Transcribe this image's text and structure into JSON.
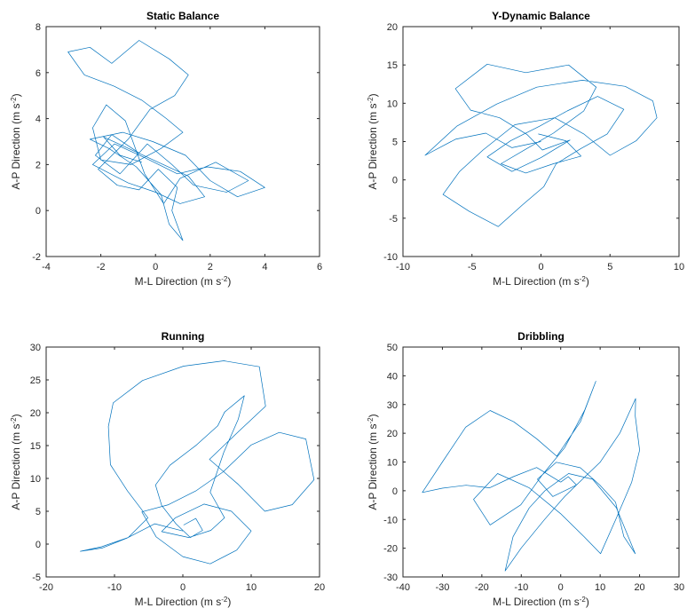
{
  "chart_data": [
    {
      "type": "line",
      "title": "Static Balance",
      "xlabel": "M-L Direction",
      "ylabel": "A-P Direction",
      "unit_prefix": "(m s",
      "unit_exp": "-2",
      "unit_suffix": ")",
      "xlim": [
        -4,
        6
      ],
      "ylim": [
        -2,
        8
      ],
      "xticks": [
        -4,
        -2,
        0,
        2,
        4,
        6
      ],
      "yticks": [
        -2,
        0,
        2,
        4,
        6,
        8
      ],
      "color": "#0072BD",
      "series": [
        {
          "points": [
            [
              -0.6,
              2.5
            ],
            [
              -1.6,
              3.3
            ],
            [
              -2.2,
              2.4
            ],
            [
              -1.3,
              1.6
            ],
            [
              -0.3,
              2.9
            ],
            [
              0.6,
              2.0
            ],
            [
              1.4,
              1.1
            ],
            [
              2.6,
              0.8
            ],
            [
              3.4,
              1.3
            ],
            [
              2.2,
              2.1
            ],
            [
              0.9,
              1.4
            ],
            [
              0.3,
              0.3
            ],
            [
              -0.4,
              1.6
            ],
            [
              -1.1,
              3.9
            ],
            [
              -1.8,
              4.6
            ],
            [
              -2.3,
              3.6
            ],
            [
              -2.0,
              2.2
            ],
            [
              -0.9,
              2.0
            ],
            [
              0.2,
              2.7
            ],
            [
              1.0,
              3.4
            ],
            [
              0.4,
              4.0
            ],
            [
              -0.5,
              4.8
            ],
            [
              -1.5,
              5.4
            ],
            [
              -2.6,
              5.9
            ],
            [
              -3.2,
              6.9
            ],
            [
              -2.4,
              7.1
            ],
            [
              -1.6,
              6.4
            ],
            [
              -0.6,
              7.4
            ],
            [
              0.5,
              6.6
            ],
            [
              1.2,
              5.9
            ],
            [
              0.7,
              5.0
            ],
            [
              -0.2,
              4.4
            ],
            [
              -1.0,
              3.1
            ],
            [
              -2.1,
              1.8
            ],
            [
              -1.4,
              1.1
            ],
            [
              -0.6,
              0.9
            ],
            [
              0.1,
              1.8
            ],
            [
              0.8,
              1.0
            ],
            [
              0.6,
              0.0
            ],
            [
              1.0,
              -1.3
            ],
            [
              0.5,
              -0.6
            ],
            [
              0.2,
              0.7
            ],
            [
              -0.7,
              1.9
            ],
            [
              -1.7,
              2.7
            ],
            [
              -2.4,
              3.1
            ],
            [
              -1.2,
              3.4
            ],
            [
              -0.1,
              3.0
            ],
            [
              1.1,
              2.4
            ],
            [
              2.0,
              1.3
            ],
            [
              3.0,
              0.6
            ],
            [
              4.0,
              1.0
            ],
            [
              3.1,
              1.7
            ],
            [
              1.9,
              1.9
            ],
            [
              0.8,
              1.6
            ],
            [
              -0.4,
              2.3
            ],
            [
              -1.5,
              2.9
            ],
            [
              -2.3,
              2.0
            ],
            [
              -1.0,
              1.2
            ],
            [
              0.0,
              0.8
            ],
            [
              0.9,
              0.3
            ],
            [
              1.8,
              0.6
            ],
            [
              1.2,
              1.5
            ],
            [
              0.1,
              2.1
            ],
            [
              -0.8,
              2.6
            ],
            [
              -1.9,
              3.2
            ],
            [
              -1.3,
              2.4
            ],
            [
              -0.5,
              2.1
            ]
          ]
        }
      ]
    },
    {
      "type": "line",
      "title": "Y-Dynamic Balance",
      "xlabel": "M-L Direction",
      "ylabel": "A-P Direction",
      "unit_prefix": "(m s",
      "unit_exp": "-2",
      "unit_suffix": ")",
      "xlim": [
        -10,
        10
      ],
      "ylim": [
        -10,
        20
      ],
      "xticks": [
        -10,
        -5,
        0,
        5,
        10
      ],
      "yticks": [
        -10,
        -5,
        0,
        5,
        10,
        15,
        20
      ],
      "color": "#0072BD",
      "series": [
        {
          "points": [
            [
              0.0,
              5.0
            ],
            [
              -2.1,
              4.2
            ],
            [
              -4.0,
              6.1
            ],
            [
              -6.2,
              5.3
            ],
            [
              -8.4,
              3.2
            ],
            [
              -6.1,
              7.0
            ],
            [
              -3.2,
              9.9
            ],
            [
              -0.3,
              12.1
            ],
            [
              3.0,
              13.0
            ],
            [
              6.1,
              12.2
            ],
            [
              8.1,
              10.3
            ],
            [
              8.4,
              8.1
            ],
            [
              6.9,
              5.1
            ],
            [
              5.0,
              3.2
            ],
            [
              3.1,
              6.0
            ],
            [
              1.0,
              8.1
            ],
            [
              -1.9,
              7.2
            ],
            [
              -4.2,
              3.9
            ],
            [
              -5.9,
              1.1
            ],
            [
              -7.1,
              -1.9
            ],
            [
              -5.2,
              -4.1
            ],
            [
              -3.1,
              -6.1
            ],
            [
              -1.3,
              -3.2
            ],
            [
              0.2,
              -0.9
            ],
            [
              1.1,
              2.1
            ],
            [
              2.9,
              4.1
            ],
            [
              4.8,
              6.0
            ],
            [
              6.0,
              9.2
            ],
            [
              4.1,
              10.9
            ],
            [
              1.9,
              9.0
            ],
            [
              -0.1,
              7.0
            ],
            [
              -2.2,
              5.1
            ],
            [
              -3.9,
              3.0
            ],
            [
              -2.1,
              1.1
            ],
            [
              0.0,
              2.9
            ],
            [
              2.1,
              5.2
            ],
            [
              0.1,
              3.9
            ],
            [
              -1.0,
              5.9
            ],
            [
              -3.0,
              8.1
            ],
            [
              -5.1,
              9.1
            ],
            [
              -6.2,
              11.9
            ],
            [
              -3.9,
              15.1
            ],
            [
              -1.1,
              14.0
            ],
            [
              2.0,
              15.0
            ],
            [
              4.0,
              12.1
            ],
            [
              3.1,
              9.0
            ],
            [
              0.9,
              6.1
            ],
            [
              -1.1,
              4.0
            ],
            [
              -2.9,
              2.1
            ],
            [
              -1.1,
              0.9
            ],
            [
              0.9,
              2.1
            ],
            [
              2.9,
              3.1
            ],
            [
              1.8,
              5.1
            ],
            [
              -0.2,
              6.0
            ]
          ]
        }
      ]
    },
    {
      "type": "line",
      "title": "Running",
      "xlabel": "M-L Direction",
      "ylabel": "A-P Direction",
      "unit_prefix": "(m s",
      "unit_exp": "-2",
      "unit_suffix": ")",
      "xlim": [
        -20,
        20
      ],
      "ylim": [
        -5,
        30
      ],
      "xticks": [
        -20,
        -10,
        0,
        10,
        20
      ],
      "yticks": [
        -5,
        0,
        5,
        10,
        15,
        20,
        25,
        30
      ],
      "color": "#0072BD",
      "series": [
        {
          "points": [
            [
              0.0,
              2.0
            ],
            [
              -4.1,
              3.1
            ],
            [
              -8.2,
              0.9
            ],
            [
              -11.8,
              -0.6
            ],
            [
              -15.0,
              -1.1
            ],
            [
              -11.9,
              -0.4
            ],
            [
              -8.0,
              1.0
            ],
            [
              -5.1,
              4.0
            ],
            [
              -8.1,
              8.1
            ],
            [
              -10.6,
              12.1
            ],
            [
              -10.9,
              17.9
            ],
            [
              -10.2,
              21.5
            ],
            [
              -5.9,
              24.9
            ],
            [
              0.1,
              27.1
            ],
            [
              6.0,
              27.9
            ],
            [
              11.2,
              27.0
            ],
            [
              12.1,
              21.0
            ],
            [
              8.1,
              17.1
            ],
            [
              3.9,
              12.9
            ],
            [
              8.1,
              9.1
            ],
            [
              12.0,
              5.0
            ],
            [
              16.0,
              6.0
            ],
            [
              19.2,
              9.8
            ],
            [
              18.0,
              16.0
            ],
            [
              14.1,
              17.0
            ],
            [
              10.0,
              15.1
            ],
            [
              5.9,
              11.0
            ],
            [
              1.9,
              8.1
            ],
            [
              -2.1,
              6.0
            ],
            [
              -6.0,
              4.9
            ],
            [
              -3.9,
              1.1
            ],
            [
              0.0,
              -1.9
            ],
            [
              4.0,
              -3.0
            ],
            [
              7.9,
              -0.9
            ],
            [
              10.0,
              2.0
            ],
            [
              7.1,
              5.0
            ],
            [
              3.1,
              6.1
            ],
            [
              -1.1,
              4.0
            ],
            [
              -3.1,
              1.9
            ],
            [
              0.9,
              1.0
            ],
            [
              4.1,
              2.1
            ],
            [
              6.1,
              4.0
            ],
            [
              4.0,
              7.9
            ],
            [
              6.0,
              14.0
            ],
            [
              8.1,
              19.0
            ],
            [
              9.0,
              22.6
            ],
            [
              6.1,
              20.1
            ],
            [
              5.1,
              18.0
            ],
            [
              2.0,
              15.1
            ],
            [
              -1.9,
              12.0
            ],
            [
              -4.0,
              9.0
            ],
            [
              -3.1,
              5.9
            ],
            [
              -1.0,
              3.1
            ],
            [
              1.1,
              1.0
            ],
            [
              2.9,
              2.1
            ],
            [
              1.9,
              3.9
            ],
            [
              0.1,
              2.9
            ]
          ]
        }
      ]
    },
    {
      "type": "line",
      "title": "Dribbling",
      "xlabel": "M-L Direction",
      "ylabel": "A-P Direction",
      "unit_prefix": "(m s",
      "unit_exp": "-2",
      "unit_suffix": ")",
      "xlim": [
        -40,
        30
      ],
      "ylim": [
        -30,
        50
      ],
      "xticks": [
        -40,
        -30,
        -20,
        -10,
        0,
        10,
        20,
        30
      ],
      "yticks": [
        -30,
        -20,
        -10,
        0,
        10,
        20,
        30,
        40,
        50
      ],
      "color": "#0072BD",
      "series": [
        {
          "points": [
            [
              0.0,
              3.0
            ],
            [
              -6.1,
              8.1
            ],
            [
              -12.0,
              4.9
            ],
            [
              -18.0,
              1.0
            ],
            [
              -24.0,
              1.9
            ],
            [
              -30.0,
              0.9
            ],
            [
              -35.1,
              -0.6
            ],
            [
              -30.0,
              10.0
            ],
            [
              -24.1,
              22.1
            ],
            [
              -17.9,
              27.9
            ],
            [
              -11.9,
              24.0
            ],
            [
              -6.1,
              18.1
            ],
            [
              -1.0,
              12.0
            ],
            [
              5.0,
              24.0
            ],
            [
              8.9,
              38.1
            ],
            [
              6.1,
              28.1
            ],
            [
              1.0,
              15.0
            ],
            [
              -4.9,
              5.1
            ],
            [
              -10.1,
              -4.9
            ],
            [
              -17.9,
              -11.9
            ],
            [
              -22.1,
              -3.0
            ],
            [
              -16.0,
              6.0
            ],
            [
              -8.0,
              1.0
            ],
            [
              0.0,
              -8.0
            ],
            [
              6.0,
              -16.1
            ],
            [
              10.1,
              -21.9
            ],
            [
              14.0,
              -9.9
            ],
            [
              18.0,
              3.0
            ],
            [
              20.0,
              14.1
            ],
            [
              18.9,
              26.0
            ],
            [
              19.0,
              32.1
            ],
            [
              15.0,
              20.1
            ],
            [
              10.0,
              9.9
            ],
            [
              4.0,
              2.0
            ],
            [
              -2.0,
              -2.0
            ],
            [
              -5.9,
              4.0
            ],
            [
              -1.1,
              9.9
            ],
            [
              5.0,
              8.0
            ],
            [
              9.9,
              2.0
            ],
            [
              13.9,
              -4.0
            ],
            [
              16.0,
              -15.9
            ],
            [
              18.9,
              -21.9
            ],
            [
              14.1,
              -5.9
            ],
            [
              8.1,
              4.0
            ],
            [
              2.0,
              6.0
            ],
            [
              -4.0,
              0.0
            ],
            [
              -8.0,
              -6.0
            ],
            [
              -12.1,
              -16.0
            ],
            [
              -14.1,
              -27.9
            ],
            [
              -10.0,
              -19.9
            ],
            [
              -4.1,
              -10.0
            ],
            [
              1.0,
              -2.0
            ],
            [
              4.0,
              2.0
            ],
            [
              1.9,
              4.9
            ],
            [
              0.0,
              3.0
            ]
          ]
        }
      ]
    }
  ]
}
